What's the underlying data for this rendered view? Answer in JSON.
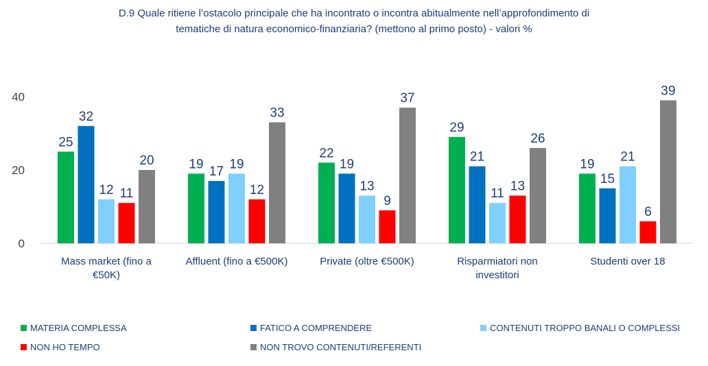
{
  "title_line1": "D.9 Quale ritiene l’ostacolo principale che ha incontrato o incontra abitualmente nell’approfondimento di",
  "title_line2": "tematiche di natura economico-finanziaria? (mettono al primo posto) - valori %",
  "chart_data": {
    "type": "bar",
    "title": "D.9 Quale ritiene l’ostacolo principale che ha incontrato o incontra abitualmente nell’approfondimento di tematiche di natura economico-finanziaria? (mettono al primo posto) - valori %",
    "categories": [
      [
        "Mass market (fino a",
        "€50K)"
      ],
      [
        "Affluent (fino a €500K)"
      ],
      [
        "Private (oltre €500K)"
      ],
      [
        "Risparmiatori non",
        "investitori"
      ],
      [
        "Studenti over 18"
      ]
    ],
    "series": [
      {
        "name": "MATERIA COMPLESSA",
        "color": "#00b050",
        "values": [
          25,
          19,
          22,
          29,
          19
        ]
      },
      {
        "name": "FATICO A COMPRENDERE",
        "color": "#0070c0",
        "values": [
          32,
          17,
          19,
          21,
          15
        ]
      },
      {
        "name": "CONTENUTI TROPPO BANALI O COMPLESSI",
        "color": "#7fd0ff",
        "values": [
          12,
          19,
          13,
          11,
          21
        ]
      },
      {
        "name": "NON HO TEMPO",
        "color": "#ff0000",
        "values": [
          11,
          12,
          9,
          13,
          6
        ]
      },
      {
        "name": "NON TROVO CONTENUTI/REFERENTI",
        "color": "#808080",
        "values": [
          20,
          33,
          37,
          26,
          39
        ]
      }
    ],
    "yticks": [
      0,
      20,
      40
    ],
    "ylim": [
      0,
      45
    ],
    "xlabel": "",
    "ylabel": "",
    "legend_position": "bottom"
  }
}
